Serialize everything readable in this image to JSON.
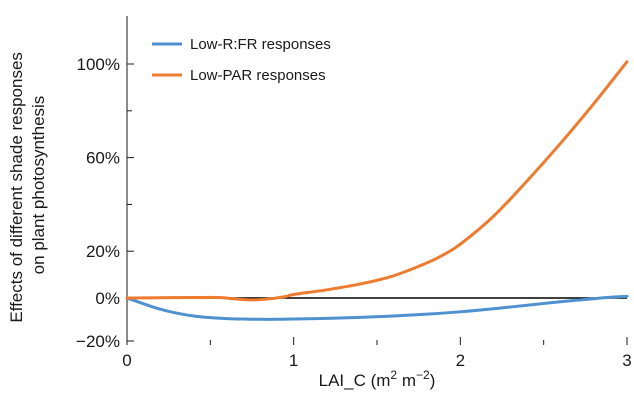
{
  "chart_data": {
    "type": "line",
    "title": "",
    "xlabel": "LAI_C (m2 m−2)",
    "xlabel_parts": {
      "base": "LAI_C (m",
      "exp1": "2",
      "mid": " m",
      "exp2": "−2",
      "end": ")"
    },
    "ylabel_lines": [
      "Effects of different shade responses",
      "on plant photosynthesis"
    ],
    "xlim": [
      0,
      3
    ],
    "ylim": [
      -20,
      120
    ],
    "x_ticks": [
      0,
      1,
      2,
      3
    ],
    "x_tick_labels": [
      "0",
      "1",
      "2",
      "3"
    ],
    "y_ticks": [
      -20,
      0,
      20,
      60,
      100
    ],
    "y_tick_labels": [
      "−20%",
      "0%",
      "20%",
      "60%",
      "100%"
    ],
    "y_minor_ticks": [
      40,
      80
    ],
    "zero_line": true,
    "grid": false,
    "legend_position": "top-left",
    "series": [
      {
        "name": "Low-R:FR responses",
        "color": "#4f91cf",
        "x": [
          0,
          0.1,
          0.2,
          0.3,
          0.4,
          0.5,
          0.6,
          0.7,
          0.8,
          0.9,
          1.0,
          1.2,
          1.4,
          1.6,
          1.8,
          2.0,
          2.2,
          2.4,
          2.6,
          2.8,
          2.9,
          3.0
        ],
        "y": [
          0,
          -2.5,
          -4.8,
          -6.5,
          -7.7,
          -8.4,
          -8.8,
          -9.0,
          -9.1,
          -9.1,
          -9.0,
          -8.7,
          -8.3,
          -7.7,
          -6.9,
          -5.9,
          -4.6,
          -3.1,
          -1.6,
          -0.3,
          0.3,
          0.7
        ]
      },
      {
        "name": "Low-PAR responses",
        "color": "#ee7b2f",
        "x": [
          0,
          0.2,
          0.4,
          0.55,
          0.65,
          0.75,
          0.85,
          0.95,
          1.0,
          1.2,
          1.4,
          1.6,
          1.8,
          1.9,
          2.0,
          2.2,
          2.4,
          2.6,
          2.8,
          3.0
        ],
        "y": [
          0,
          0.1,
          0.2,
          0.2,
          -0.4,
          -0.8,
          -0.4,
          0.6,
          1.5,
          3.5,
          6.0,
          9.5,
          15.0,
          18.5,
          23.0,
          35.0,
          50.0,
          66.0,
          83.0,
          101.0
        ]
      }
    ]
  }
}
